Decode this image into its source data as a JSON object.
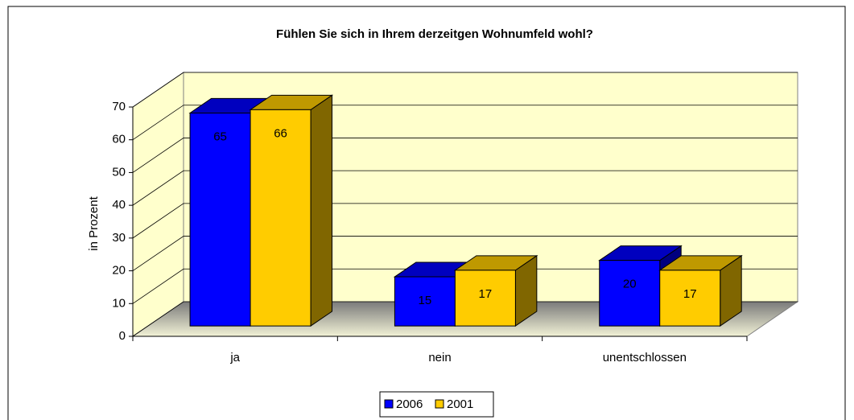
{
  "chart_data": {
    "type": "bar3d",
    "title": "Fühlen Sie sich in Ihrem derzeitgen Wohnumfeld wohl?",
    "ylabel": "in Prozent",
    "categories": [
      "ja",
      "nein",
      "unentschlossen"
    ],
    "series": [
      {
        "name": "2006",
        "color": "#0000ff",
        "values": [
          65,
          15,
          20
        ]
      },
      {
        "name": "2001",
        "color": "#ffcc00",
        "values": [
          66,
          17,
          17
        ]
      }
    ],
    "ylim": [
      0,
      70
    ],
    "yticks": [
      0,
      10,
      20,
      30,
      40,
      50,
      60,
      70
    ],
    "grid": true,
    "legend": "bottom"
  }
}
